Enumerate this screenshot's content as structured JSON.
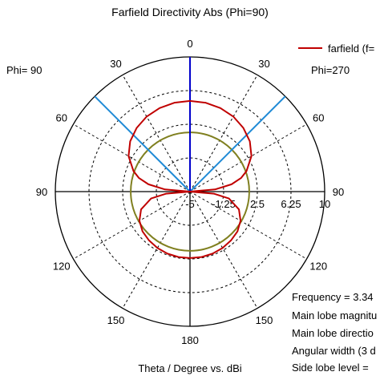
{
  "chart_data": {
    "type": "polar",
    "title": "Farfield Directivity Abs (Phi=90)",
    "xlabel": "Theta / Degree vs. dBi",
    "left_phi_label": "Phi= 90",
    "right_phi_label": "Phi=270",
    "legend": {
      "label": "farfield (f=",
      "color": "#c00000",
      "placement": "top-right"
    },
    "angle_ticks": [
      {
        "angle": 0,
        "label": "0"
      },
      {
        "angle": 30,
        "label": "30"
      },
      {
        "angle": 60,
        "label": "60"
      },
      {
        "angle": 90,
        "label": "90"
      },
      {
        "angle": 120,
        "label": "120"
      },
      {
        "angle": 150,
        "label": "150"
      },
      {
        "angle": 180,
        "label": "180"
      },
      {
        "angle": -150,
        "label": "150"
      },
      {
        "angle": -120,
        "label": "120"
      },
      {
        "angle": -90,
        "label": "90"
      },
      {
        "angle": -60,
        "label": "60"
      },
      {
        "angle": -30,
        "label": "30"
      }
    ],
    "radial_range": [
      -5,
      10
    ],
    "radial_ticks": [
      {
        "value": -5,
        "label": "-5"
      },
      {
        "value": -1.25,
        "label": "-1.25"
      },
      {
        "value": 2.5,
        "label": "2.5"
      },
      {
        "value": 6.25,
        "label": "6.25"
      },
      {
        "value": 10,
        "label": "10"
      }
    ],
    "series": [
      {
        "color": "#c00000",
        "points": [
          [
            0,
            5.1
          ],
          [
            10,
            5.05
          ],
          [
            20,
            4.9
          ],
          [
            30,
            4.65
          ],
          [
            40,
            4.25
          ],
          [
            50,
            3.7
          ],
          [
            60,
            2.9
          ],
          [
            70,
            1.7
          ],
          [
            75,
            0.9
          ],
          [
            80,
            -0.3
          ],
          [
            85,
            -2.2
          ],
          [
            90,
            -5
          ],
          [
            95,
            -2.3
          ],
          [
            100,
            -0.6
          ],
          [
            110,
            0.8
          ],
          [
            120,
            1.5
          ],
          [
            130,
            1.9
          ],
          [
            140,
            2.1
          ],
          [
            150,
            2.25
          ],
          [
            160,
            2.35
          ],
          [
            170,
            2.4
          ],
          [
            180,
            2.4
          ],
          [
            190,
            2.4
          ],
          [
            200,
            2.35
          ],
          [
            210,
            2.25
          ],
          [
            220,
            2.1
          ],
          [
            230,
            1.9
          ],
          [
            240,
            1.5
          ],
          [
            250,
            0.8
          ],
          [
            260,
            -0.6
          ],
          [
            265,
            -2.3
          ],
          [
            270,
            -5
          ],
          [
            275,
            -2.2
          ],
          [
            280,
            -0.3
          ],
          [
            285,
            0.9
          ],
          [
            290,
            1.7
          ],
          [
            300,
            2.9
          ],
          [
            310,
            3.7
          ],
          [
            320,
            4.25
          ],
          [
            330,
            4.65
          ],
          [
            340,
            4.9
          ],
          [
            350,
            5.05
          ],
          [
            360,
            5.1
          ]
        ]
      }
    ],
    "main_lobe_direction_line": {
      "angle": 0,
      "color": "#0000cc"
    },
    "angular_width_lines": {
      "angles": [
        -45,
        45
      ],
      "color": "#1e8ad6"
    },
    "side_lobe_level_circle": {
      "value": 1.6,
      "color": "#808020"
    },
    "info_lines": [
      "Frequency = 3.34",
      "Main lobe magnitu",
      "Main lobe directio",
      "Angular width (3 d",
      "Side lobe level ="
    ]
  }
}
